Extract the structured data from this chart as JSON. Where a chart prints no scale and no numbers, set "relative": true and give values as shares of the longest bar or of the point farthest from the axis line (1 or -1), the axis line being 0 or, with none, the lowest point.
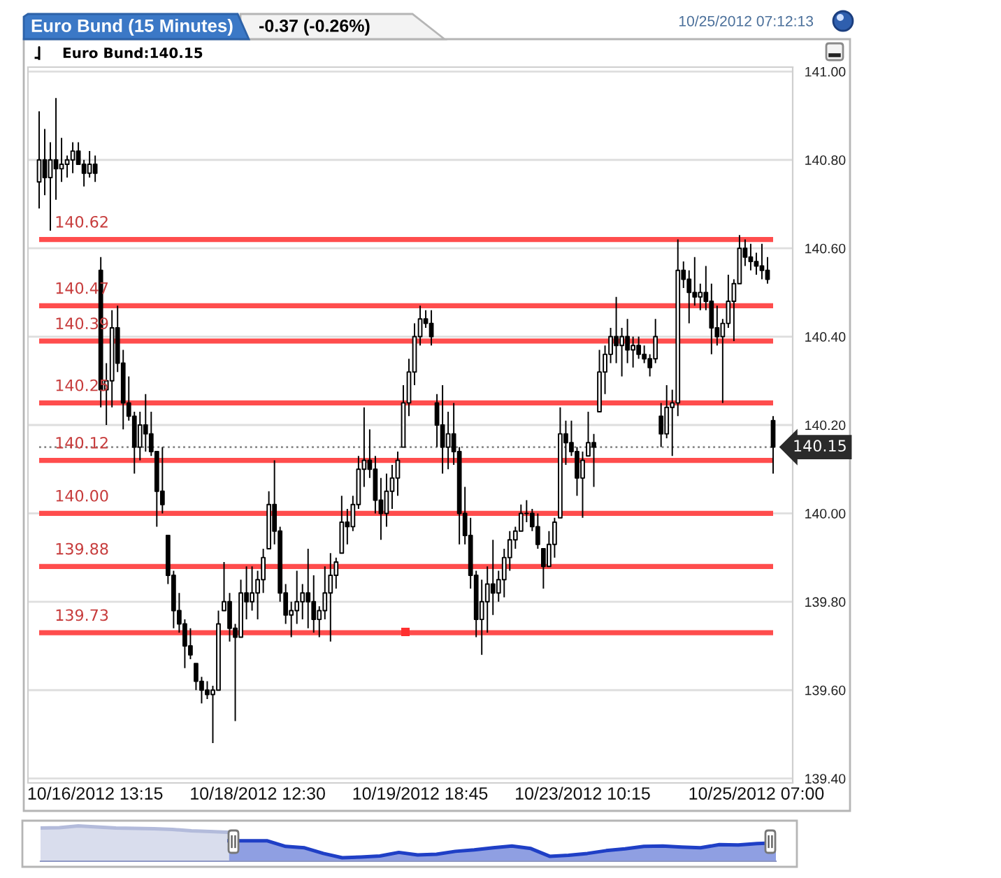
{
  "chart_data": [
    {
      "type": "candlestick",
      "title": "Euro Bund (15 Minutes)",
      "subtitle": "-0.37 (-0.26%)",
      "annotations": [
        "10/25/2012 07:12:13"
      ],
      "categories": [
        null,
        null,
        null,
        null,
        null,
        null,
        null,
        null,
        null,
        null,
        "10/16/2012 13:15",
        null,
        null,
        null,
        null,
        null,
        null,
        null,
        null,
        null,
        null,
        null,
        null,
        null,
        null,
        null,
        null,
        null,
        null,
        null,
        null,
        null,
        null,
        null,
        null,
        null,
        null,
        null,
        null,
        "10/18/2012 12:30",
        null,
        null,
        null,
        null,
        null,
        null,
        null,
        null,
        null,
        null,
        null,
        null,
        null,
        null,
        null,
        null,
        null,
        null,
        null,
        null,
        null,
        null,
        null,
        null,
        null,
        null,
        null,
        null,
        "10/19/2012 18:45",
        null,
        null,
        null,
        null,
        null,
        null,
        null,
        null,
        null,
        null,
        null,
        null,
        null,
        null,
        null,
        null,
        null,
        null,
        null,
        null,
        null,
        null,
        null,
        null,
        null,
        null,
        null,
        null,
        "10/23/2012 10:15",
        null,
        null,
        null,
        null,
        null,
        null,
        null,
        null,
        null,
        null,
        null,
        null,
        null,
        null,
        null,
        null,
        null,
        null,
        null,
        null,
        null,
        null,
        null,
        null,
        null,
        null,
        null,
        null,
        null,
        null,
        "10/25/2012 07:00",
        null,
        null,
        null
      ],
      "series": [
        {
          "name": "Euro Bund:140.15",
          "color": "#000000",
          "ohlc": [
            [
              140.75,
              140.91,
              140.69,
              140.8
            ],
            [
              140.8,
              140.87,
              140.72,
              140.76
            ],
            [
              140.76,
              140.84,
              140.64,
              140.8
            ],
            [
              140.8,
              140.94,
              140.71,
              140.78
            ],
            [
              140.78,
              140.85,
              140.75,
              140.79
            ],
            [
              140.79,
              140.81,
              140.76,
              140.8
            ],
            [
              140.8,
              140.84,
              140.77,
              140.82
            ],
            [
              140.82,
              140.84,
              140.79,
              140.79
            ],
            [
              140.79,
              140.8,
              140.74,
              140.77
            ],
            [
              140.77,
              140.82,
              140.76,
              140.79
            ],
            [
              140.79,
              140.81,
              140.75,
              140.77
            ],
            [
              140.55,
              140.58,
              140.24,
              140.28
            ],
            [
              140.28,
              140.34,
              140.2,
              140.3
            ],
            [
              140.3,
              140.46,
              140.24,
              140.42
            ],
            [
              140.42,
              140.47,
              140.32,
              140.34
            ],
            [
              140.34,
              140.37,
              140.19,
              140.25
            ],
            [
              140.25,
              140.31,
              140.21,
              140.22
            ],
            [
              140.22,
              140.23,
              140.09,
              140.15
            ],
            [
              140.15,
              140.23,
              140.12,
              140.2
            ],
            [
              140.2,
              140.27,
              140.14,
              140.18
            ],
            [
              140.18,
              140.23,
              140.13,
              140.14
            ],
            [
              140.14,
              140.14,
              139.97,
              140.05
            ],
            [
              140.05,
              140.15,
              140.0,
              140.02
            ],
            [
              139.95,
              139.95,
              139.84,
              139.86
            ],
            [
              139.86,
              139.87,
              139.74,
              139.78
            ],
            [
              139.78,
              139.82,
              139.73,
              139.75
            ],
            [
              139.75,
              139.76,
              139.65,
              139.7
            ],
            [
              139.7,
              139.74,
              139.67,
              139.68
            ],
            [
              139.66,
              139.66,
              139.6,
              139.62
            ],
            [
              139.62,
              139.63,
              139.57,
              139.6
            ],
            [
              139.6,
              139.62,
              139.58,
              139.59
            ],
            [
              139.59,
              139.61,
              139.48,
              139.6
            ],
            [
              139.6,
              139.78,
              139.6,
              139.75
            ],
            [
              139.78,
              139.89,
              139.78,
              139.8
            ],
            [
              139.8,
              139.82,
              139.71,
              139.74
            ],
            [
              139.74,
              139.75,
              139.53,
              139.72
            ],
            [
              139.72,
              139.85,
              139.72,
              139.82
            ],
            [
              139.82,
              139.88,
              139.76,
              139.8
            ],
            [
              139.8,
              139.88,
              139.78,
              139.82
            ],
            [
              139.82,
              139.87,
              139.76,
              139.85
            ],
            [
              139.85,
              139.92,
              139.82,
              139.9
            ],
            [
              139.92,
              140.05,
              139.92,
              140.02
            ],
            [
              140.02,
              140.12,
              139.93,
              139.96
            ],
            [
              139.96,
              139.97,
              139.8,
              139.82
            ],
            [
              139.82,
              139.84,
              139.75,
              139.77
            ],
            [
              139.77,
              139.8,
              139.72,
              139.78
            ],
            [
              139.78,
              139.87,
              139.75,
              139.8
            ],
            [
              139.8,
              139.84,
              139.76,
              139.82
            ],
            [
              139.82,
              139.92,
              139.74,
              139.8
            ],
            [
              139.8,
              139.86,
              139.73,
              139.76
            ],
            [
              139.76,
              139.79,
              139.72,
              139.78
            ],
            [
              139.78,
              139.88,
              139.76,
              139.82
            ],
            [
              139.82,
              139.91,
              139.71,
              139.86
            ],
            [
              139.86,
              139.9,
              139.83,
              139.89
            ],
            [
              139.91,
              140.04,
              139.91,
              139.98
            ],
            [
              139.98,
              140.01,
              139.93,
              139.97
            ],
            [
              139.97,
              140.04,
              139.96,
              140.02
            ],
            [
              140.02,
              140.13,
              140.01,
              140.1
            ],
            [
              140.1,
              140.24,
              140.06,
              140.12
            ],
            [
              140.12,
              140.19,
              140.08,
              140.1
            ],
            [
              140.1,
              140.13,
              140.0,
              140.03
            ],
            [
              140.03,
              140.08,
              139.94,
              140.0
            ],
            [
              140.0,
              140.09,
              139.97,
              140.05
            ],
            [
              140.05,
              140.11,
              140.01,
              140.08
            ],
            [
              140.08,
              140.14,
              140.04,
              140.12
            ],
            [
              140.15,
              140.29,
              140.15,
              140.25
            ],
            [
              140.25,
              140.35,
              140.22,
              140.32
            ],
            [
              140.32,
              140.43,
              140.29,
              140.4
            ],
            [
              140.4,
              140.47,
              140.38,
              140.44
            ],
            [
              140.44,
              140.46,
              140.42,
              140.43
            ],
            [
              140.43,
              140.46,
              140.38,
              140.4
            ],
            [
              140.25,
              140.27,
              140.15,
              140.2
            ],
            [
              140.2,
              140.29,
              140.09,
              140.15
            ],
            [
              140.15,
              140.23,
              140.1,
              140.18
            ],
            [
              140.18,
              140.25,
              140.11,
              140.14
            ],
            [
              140.14,
              140.15,
              139.93,
              140.0
            ],
            [
              140.0,
              140.06,
              139.93,
              139.95
            ],
            [
              139.95,
              139.99,
              139.83,
              139.86
            ],
            [
              139.86,
              139.87,
              139.72,
              139.76
            ],
            [
              139.76,
              139.85,
              139.68,
              139.8
            ],
            [
              139.8,
              139.88,
              139.73,
              139.84
            ],
            [
              139.84,
              139.94,
              139.77,
              139.82
            ],
            [
              139.82,
              139.87,
              139.8,
              139.85
            ],
            [
              139.85,
              139.92,
              139.81,
              139.9
            ],
            [
              139.9,
              139.96,
              139.87,
              139.94
            ],
            [
              139.94,
              139.97,
              139.92,
              139.96
            ],
            [
              139.96,
              140.02,
              139.96,
              140.0
            ],
            [
              140.0,
              140.03,
              139.98,
              140.0
            ],
            [
              140.0,
              140.01,
              139.96,
              139.97
            ],
            [
              139.97,
              140.0,
              139.92,
              139.93
            ],
            [
              139.92,
              139.92,
              139.83,
              139.88
            ],
            [
              139.88,
              139.96,
              139.88,
              139.93
            ],
            [
              139.93,
              139.99,
              139.9,
              139.98
            ],
            [
              139.99,
              140.24,
              139.99,
              140.18
            ],
            [
              140.18,
              140.21,
              140.11,
              140.16
            ],
            [
              140.16,
              140.21,
              140.13,
              140.14
            ],
            [
              140.14,
              140.15,
              140.04,
              140.08
            ],
            [
              140.08,
              140.14,
              139.99,
              140.12
            ],
            [
              140.13,
              140.23,
              140.13,
              140.16
            ],
            [
              140.16,
              140.18,
              140.06,
              140.15
            ],
            [
              140.23,
              140.37,
              140.23,
              140.32
            ],
            [
              140.32,
              140.38,
              140.27,
              140.36
            ],
            [
              140.36,
              140.42,
              140.34,
              140.4
            ],
            [
              140.4,
              140.49,
              140.34,
              140.38
            ],
            [
              140.38,
              140.42,
              140.31,
              140.4
            ],
            [
              140.4,
              140.44,
              140.34,
              140.37
            ],
            [
              140.37,
              140.4,
              140.33,
              140.38
            ],
            [
              140.38,
              140.4,
              140.35,
              140.36
            ],
            [
              140.36,
              140.38,
              140.34,
              140.35
            ],
            [
              140.35,
              140.36,
              140.31,
              140.33
            ],
            [
              140.35,
              140.44,
              140.34,
              140.4
            ],
            [
              140.22,
              140.25,
              140.15,
              140.18
            ],
            [
              140.18,
              140.29,
              140.17,
              140.24
            ],
            [
              140.24,
              140.28,
              140.13,
              140.25
            ],
            [
              140.25,
              140.62,
              140.22,
              140.55
            ],
            [
              140.55,
              140.57,
              140.51,
              140.53
            ],
            [
              140.53,
              140.55,
              140.43,
              140.5
            ],
            [
              140.5,
              140.58,
              140.47,
              140.49
            ],
            [
              140.49,
              140.52,
              140.46,
              140.5
            ],
            [
              140.5,
              140.56,
              140.46,
              140.48
            ],
            [
              140.48,
              140.52,
              140.36,
              140.42
            ],
            [
              140.42,
              140.47,
              140.38,
              140.4
            ],
            [
              140.4,
              140.44,
              140.25,
              140.43
            ],
            [
              140.43,
              140.54,
              140.42,
              140.48
            ],
            [
              140.48,
              140.53,
              140.39,
              140.52
            ],
            [
              140.52,
              140.63,
              140.52,
              140.6
            ],
            [
              140.6,
              140.62,
              140.56,
              140.58
            ],
            [
              140.58,
              140.61,
              140.55,
              140.57
            ],
            [
              140.57,
              140.59,
              140.54,
              140.56
            ],
            [
              140.56,
              140.61,
              140.53,
              140.55
            ],
            [
              140.55,
              140.58,
              140.52,
              140.53
            ],
            [
              140.21,
              140.22,
              140.09,
              140.15
            ]
          ]
        }
      ],
      "ylim": [
        139.39,
        141.01
      ],
      "yticks": [
        {
          "value": 139.4,
          "label": "139.40"
        },
        {
          "value": 139.6,
          "label": "139.60"
        },
        {
          "value": 139.8,
          "label": "139.80"
        },
        {
          "value": 140.0,
          "label": "140.00"
        },
        {
          "value": 140.2,
          "label": "140.20"
        },
        {
          "value": 140.4,
          "label": "140.40"
        },
        {
          "value": 140.6,
          "label": "140.60"
        },
        {
          "value": 140.8,
          "label": "140.80"
        },
        {
          "value": 141.0,
          "label": "141.00"
        }
      ],
      "grid": "y",
      "legend": "top left",
      "ref_lines": [
        {
          "axis": "y",
          "value": 140.62,
          "label": "140.62",
          "color": "#ff4d4d",
          "line_style": "solid"
        },
        {
          "axis": "y",
          "value": 140.47,
          "label": "140.47",
          "color": "#ff4d4d",
          "line_style": "solid"
        },
        {
          "axis": "y",
          "value": 140.39,
          "label": "140.39",
          "color": "#ff4d4d",
          "line_style": "solid"
        },
        {
          "axis": "y",
          "value": 140.25,
          "label": "140.25",
          "color": "#ff4d4d",
          "line_style": "solid"
        },
        {
          "axis": "y",
          "value": 140.12,
          "label": "140.12",
          "color": "#ff4d4d",
          "line_style": "solid"
        },
        {
          "axis": "y",
          "value": 140.0,
          "label": "140.00",
          "color": "#ff4d4d",
          "line_style": "solid"
        },
        {
          "axis": "y",
          "value": 139.88,
          "label": "139.88",
          "color": "#ff4d4d",
          "line_style": "solid"
        },
        {
          "axis": "y",
          "value": 139.73,
          "label": "139.73",
          "color": "#ff4d4d",
          "line_style": "solid"
        },
        {
          "axis": "y",
          "value": 140.15,
          "label": "140.15",
          "color": "#888888",
          "line_style": "dotted"
        }
      ]
    },
    {
      "type": "area",
      "relative": true,
      "categories": [
        null,
        null,
        null,
        null,
        null,
        null,
        null,
        null,
        null,
        null,
        null,
        null,
        null,
        null,
        null,
        null,
        null,
        null,
        null,
        null,
        null,
        null,
        null,
        null,
        null,
        null,
        null,
        null,
        null,
        null,
        null,
        null,
        null,
        null,
        null,
        null,
        null,
        null,
        null,
        null
      ],
      "series": [
        {
          "color": "#b3bbdb",
          "values": [
            0.94,
            0.95,
            1,
            0.97,
            0.94,
            0.93,
            0.92,
            0.9,
            0.86,
            0.84,
            0.82,
            null,
            null,
            null,
            null,
            null,
            null,
            null,
            null,
            null,
            null,
            null,
            null,
            null,
            null,
            null,
            null,
            null,
            null,
            null,
            null,
            null,
            null,
            null,
            null,
            null,
            null,
            null,
            null,
            null
          ]
        },
        {
          "color": "#1f3fc6",
          "values": [
            null,
            null,
            null,
            null,
            null,
            null,
            null,
            null,
            null,
            null,
            0.58,
            0.58,
            0.58,
            0.42,
            0.38,
            0.22,
            0.1,
            0.12,
            0.15,
            0.25,
            0.18,
            0.2,
            0.28,
            0.32,
            0.38,
            0.43,
            0.36,
            0.14,
            0.17,
            0.22,
            0.3,
            0.35,
            0.42,
            0.43,
            0.4,
            0.38,
            0.47,
            0.46,
            0.5,
            0.52
          ]
        }
      ]
    }
  ]
}
